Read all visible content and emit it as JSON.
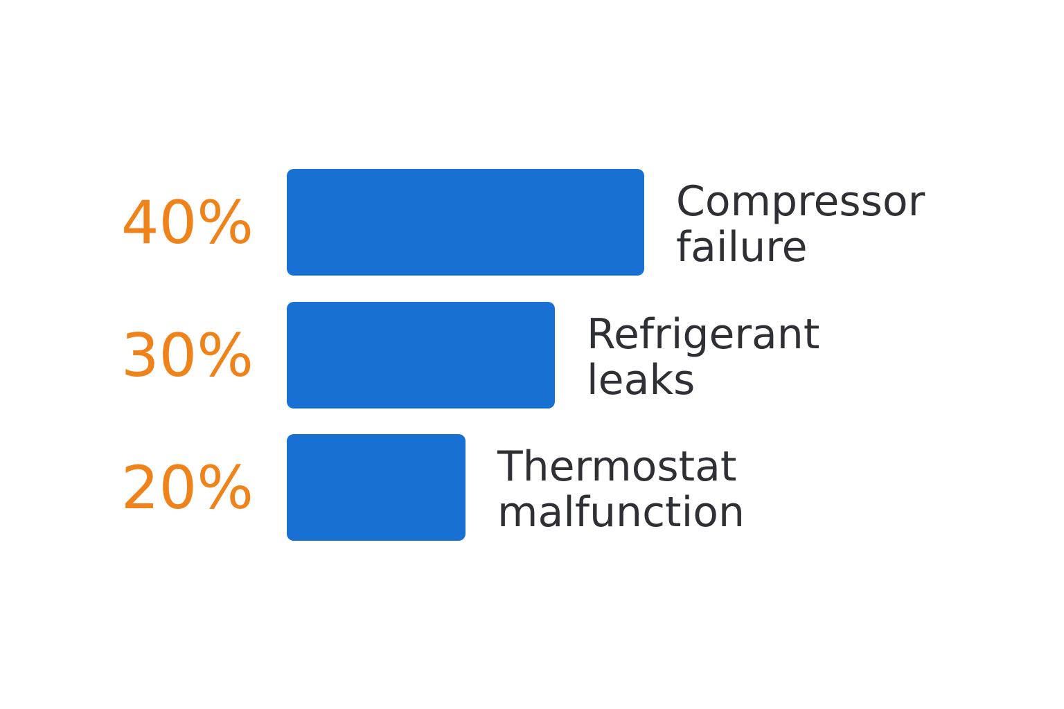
{
  "colors": {
    "bar": "#1871D2",
    "percent_text": "#F0821A",
    "label_text": "#2E3036",
    "background": "#FFFFFF"
  },
  "chart_data": {
    "type": "bar",
    "orientation": "horizontal",
    "title": "",
    "xlabel": "",
    "ylabel": "",
    "xlim": [
      0,
      40
    ],
    "grid": false,
    "categories": [
      "Compressor failure",
      "Refrigerant leaks",
      "Thermostat malfunction"
    ],
    "value_labels": [
      "40%",
      "30%",
      "20%"
    ],
    "label_lines": [
      [
        "Compressor",
        "failure"
      ],
      [
        "Refrigerant",
        "leaks"
      ],
      [
        "Thermostat",
        "malfunction"
      ]
    ],
    "values": [
      40,
      30,
      20
    ]
  }
}
